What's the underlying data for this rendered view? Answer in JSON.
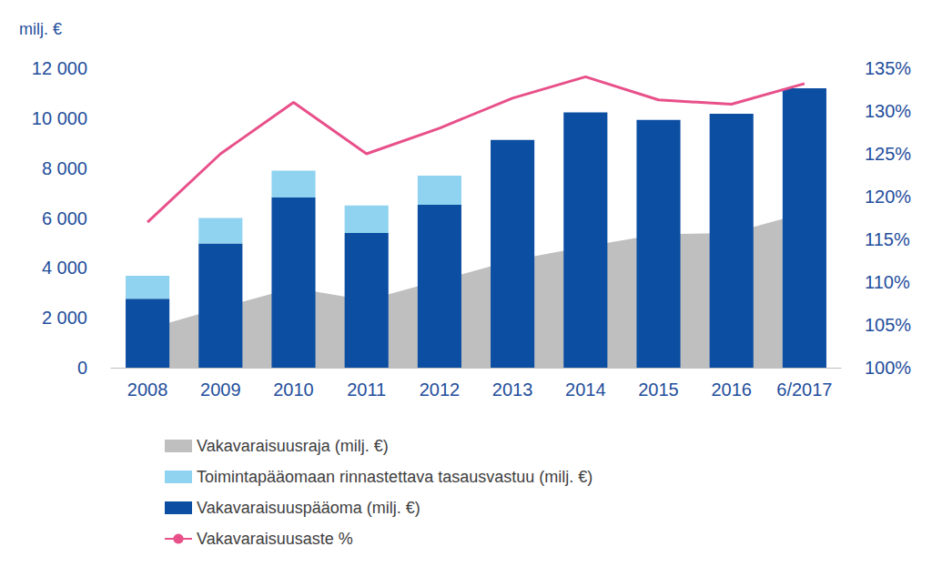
{
  "chart_data": {
    "type": "bar",
    "ylabel": "milj. €",
    "categories": [
      "2008",
      "2009",
      "2010",
      "2011",
      "2012",
      "2013",
      "2014",
      "2015",
      "2016",
      "6/2017"
    ],
    "stacked": true,
    "grid": false,
    "legend": "bottom",
    "series": [
      {
        "name": "Vakavaraisuusraja (milj. €)",
        "type": "area",
        "color": "#bfbfbf",
        "values": [
          1550,
          2400,
          3200,
          2700,
          3500,
          4300,
          4850,
          5350,
          5400,
          6200
        ]
      },
      {
        "name": "Toimintapääomaan rinnastettava tasausvastuu (milj. €)",
        "type": "bar",
        "color": "#8fd3f0",
        "values": [
          920,
          1020,
          1080,
          1100,
          1170,
          null,
          null,
          null,
          null,
          null
        ]
      },
      {
        "name": "Vakavaraisuuspääoma (milj. €)",
        "type": "bar",
        "color": "#0b4ea2",
        "values": [
          2760,
          4980,
          6820,
          5400,
          6530,
          9130,
          10230,
          9930,
          10180,
          11200
        ]
      },
      {
        "name": "Vakavaraisuusaste %",
        "type": "line",
        "color": "#e8508a",
        "axis": "y2",
        "marker": "none",
        "values": [
          117,
          125,
          131,
          125,
          128,
          131.5,
          134,
          131.3,
          130.8,
          133.2
        ]
      }
    ],
    "ylim": [
      0,
      12000
    ],
    "yticks": [
      0,
      {
        "value": 2000,
        "label": "2 000"
      },
      {
        "value": 4000,
        "label": "4 000"
      },
      {
        "value": 6000,
        "label": "6 000"
      },
      {
        "value": 8000,
        "label": "8 000"
      },
      {
        "value": 10000,
        "label": "10 000"
      },
      {
        "value": 12000,
        "label": "12 000"
      }
    ],
    "y2lim": [
      100,
      135
    ],
    "y2ticks": [
      {
        "value": 100,
        "label": "100%"
      },
      {
        "value": 105,
        "label": "105%"
      },
      {
        "value": 110,
        "label": "110%"
      },
      {
        "value": 115,
        "label": "115%"
      },
      {
        "value": 120,
        "label": "120%"
      },
      {
        "value": 125,
        "label": "125%"
      },
      {
        "value": 130,
        "label": "130%"
      },
      {
        "value": 135,
        "label": "135%"
      }
    ]
  }
}
